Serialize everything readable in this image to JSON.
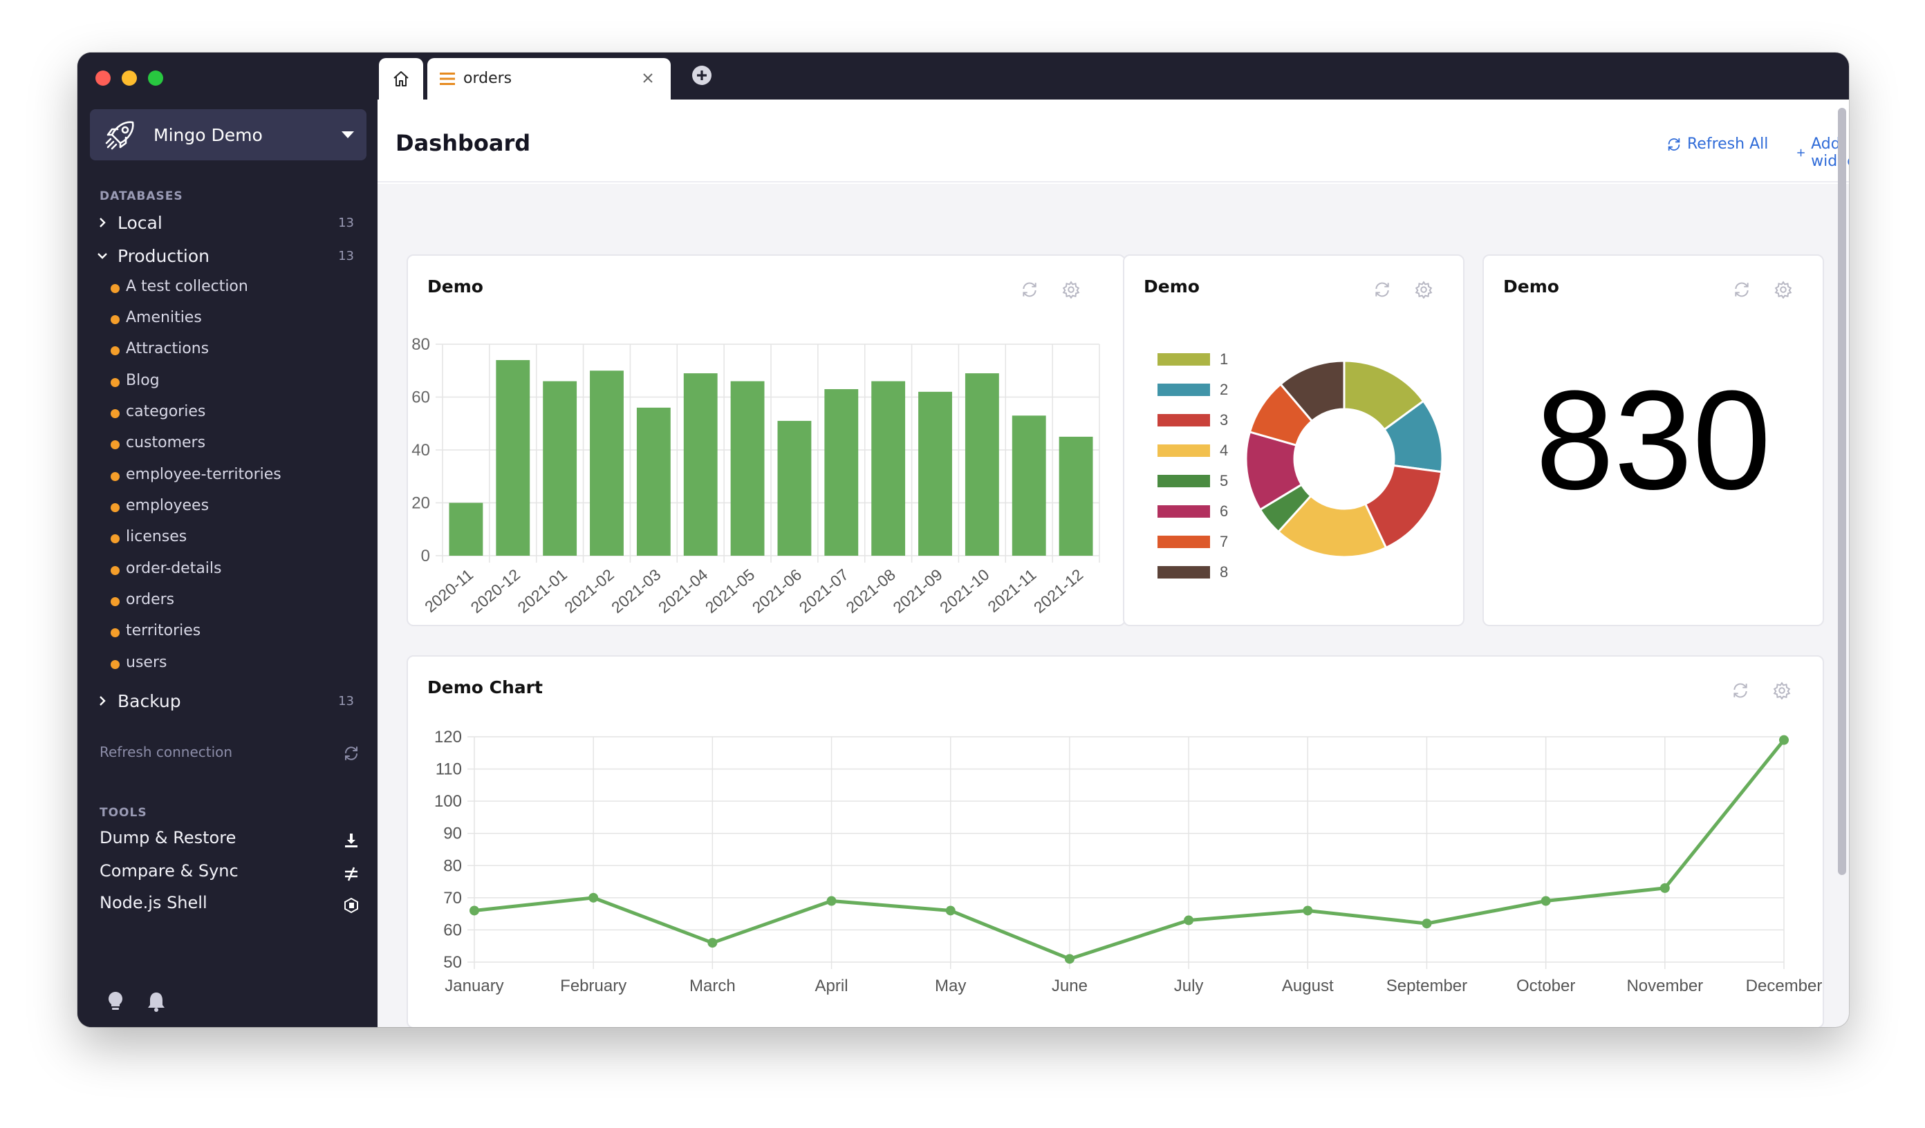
{
  "app": {
    "connection_name": "Mingo Demo"
  },
  "sidebar": {
    "databases_label": "DATABASES",
    "databases": [
      {
        "label": "Local",
        "count": "13",
        "expanded": false
      },
      {
        "label": "Production",
        "count": "13",
        "expanded": true
      },
      {
        "label": "Backup",
        "count": "13",
        "expanded": false
      }
    ],
    "collections": [
      "A test collection",
      "Amenities",
      "Attractions",
      "Blog",
      "categories",
      "customers",
      "employee-territories",
      "employees",
      "licenses",
      "order-details",
      "orders",
      "territories",
      "users"
    ],
    "refresh_connection": "Refresh connection",
    "tools_label": "TOOLS",
    "tools": [
      {
        "label": "Dump & Restore",
        "icon": "download-icon"
      },
      {
        "label": "Compare & Sync",
        "icon": "not-equal-icon"
      },
      {
        "label": "Node.js Shell",
        "icon": "nodejs-icon"
      }
    ]
  },
  "tabs": {
    "home_icon": "home-icon",
    "active_tab": "orders"
  },
  "header": {
    "title": "Dashboard",
    "refresh_all": "Refresh All",
    "add_widget": "Add widget"
  },
  "widgets": {
    "bar_title": "Demo",
    "pie_title": "Demo",
    "number_title": "Demo",
    "number_value": "830",
    "line_title": "Demo Chart"
  },
  "colors": {
    "accent": "#2f6bd8",
    "bar": "#67ad5b",
    "line": "#67ad5b",
    "collection_dot": "#f59e2a",
    "sidebar_bg": "#20202f"
  },
  "chart_data": [
    {
      "type": "bar",
      "title": "Demo",
      "categories": [
        "2020-11",
        "2020-12",
        "2021-01",
        "2021-02",
        "2021-03",
        "2021-04",
        "2021-05",
        "2021-06",
        "2021-07",
        "2021-08",
        "2021-09",
        "2021-10",
        "2021-11",
        "2021-12"
      ],
      "values": [
        20,
        74,
        66,
        70,
        56,
        69,
        66,
        51,
        63,
        66,
        62,
        69,
        53,
        45
      ],
      "ylim": [
        0,
        80
      ],
      "yticks": [
        0,
        20,
        40,
        60,
        80
      ],
      "grid": true
    },
    {
      "type": "pie",
      "title": "Demo",
      "donut": true,
      "labels": [
        "1",
        "2",
        "3",
        "4",
        "5",
        "6",
        "7",
        "8"
      ],
      "values": [
        16,
        13,
        17,
        20,
        5,
        14,
        10,
        12
      ],
      "colors": [
        "#acb444",
        "#4094a8",
        "#c9413a",
        "#f2c04e",
        "#4a8b41",
        "#b2305e",
        "#dd592a",
        "#5b4238"
      ],
      "legend": "left"
    },
    {
      "type": "line",
      "title": "Demo Chart",
      "categories": [
        "January",
        "February",
        "March",
        "April",
        "May",
        "June",
        "July",
        "August",
        "September",
        "October",
        "November",
        "December"
      ],
      "values": [
        66,
        70,
        56,
        69,
        66,
        51,
        63,
        66,
        62,
        69,
        73,
        119
      ],
      "ylim": [
        50,
        120
      ],
      "yticks": [
        50,
        60,
        70,
        80,
        90,
        100,
        110,
        120
      ],
      "grid": true
    }
  ]
}
